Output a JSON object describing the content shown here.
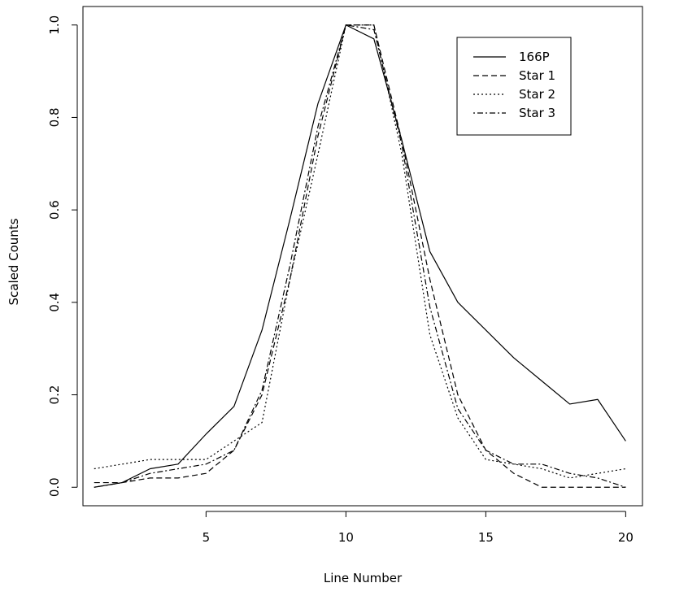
{
  "chart_data": {
    "type": "line",
    "title": "",
    "xlabel": "Line Number",
    "ylabel": "Scaled Counts",
    "xlim": [
      0.6,
      20.6
    ],
    "ylim": [
      -0.04,
      1.04
    ],
    "xticks": [
      "5",
      "10",
      "15",
      "20"
    ],
    "yticks": [
      "0.0",
      "0.2",
      "0.4",
      "0.6",
      "0.8",
      "1.0"
    ],
    "grid": false,
    "legend_position": "top-right",
    "x": [
      1,
      2,
      3,
      4,
      5,
      6,
      7,
      8,
      9,
      10,
      11,
      12,
      13,
      14,
      15,
      16,
      17,
      18,
      19,
      20
    ],
    "series": [
      {
        "name": "166P",
        "dash": "solid",
        "values": [
          0.0,
          0.01,
          0.04,
          0.05,
          0.115,
          0.175,
          0.34,
          0.58,
          0.83,
          1.0,
          0.97,
          0.75,
          0.51,
          0.4,
          0.34,
          0.28,
          0.23,
          0.18,
          0.19,
          0.1
        ]
      },
      {
        "name": "Star 1",
        "dash": "dashed",
        "values": [
          0.01,
          0.01,
          0.02,
          0.02,
          0.03,
          0.08,
          0.2,
          0.45,
          0.76,
          1.0,
          1.0,
          0.75,
          0.45,
          0.2,
          0.08,
          0.03,
          0.0,
          0.0,
          0.0,
          0.0
        ]
      },
      {
        "name": "Star 2",
        "dash": "dotted",
        "values": [
          0.04,
          0.05,
          0.06,
          0.06,
          0.06,
          0.1,
          0.14,
          0.45,
          0.72,
          1.0,
          1.0,
          0.72,
          0.33,
          0.15,
          0.06,
          0.05,
          0.04,
          0.02,
          0.03,
          0.04
        ]
      },
      {
        "name": "Star 3",
        "dash": "dotdash",
        "values": [
          0.0,
          0.01,
          0.03,
          0.04,
          0.05,
          0.08,
          0.21,
          0.48,
          0.78,
          1.0,
          0.99,
          0.74,
          0.39,
          0.17,
          0.08,
          0.05,
          0.05,
          0.03,
          0.02,
          0.0
        ]
      }
    ]
  }
}
